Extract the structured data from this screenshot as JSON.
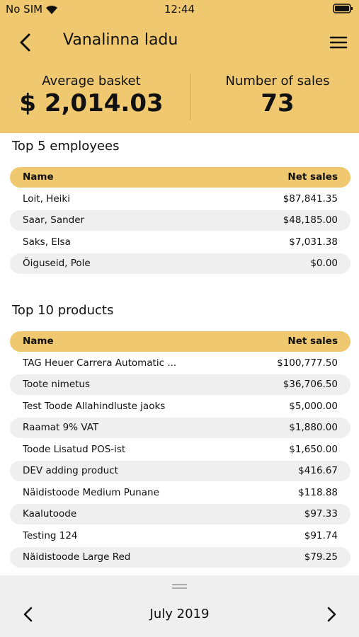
{
  "status_bar": {
    "carrier": "No SIM",
    "time": "12:44"
  },
  "header": {
    "title": "Vanalinna ladu"
  },
  "stats": [
    {
      "label": "Average basket",
      "value": "$ 2,014.03"
    },
    {
      "label": "Number of sales",
      "value": "73"
    }
  ],
  "employees": {
    "title": "Top 5 employees",
    "columns": [
      "Name",
      "Net sales"
    ],
    "rows": [
      [
        "Loit, Heiki",
        "$87,841.35"
      ],
      [
        "Saar, Sander",
        "$48,185.00"
      ],
      [
        "Saks, Elsa",
        "$7,031.38"
      ],
      [
        "Õiguseid, Pole",
        "$0.00"
      ]
    ]
  },
  "products": {
    "title": "Top 10 products",
    "columns": [
      "Name",
      "Net sales"
    ],
    "rows": [
      [
        "TAG Heuer Carrera Automatic ...",
        "$100,777.50"
      ],
      [
        "Toote nimetus",
        "$36,706.50"
      ],
      [
        "Test Toode Allahindluste jaoks",
        "$5,000.00"
      ],
      [
        "Raamat 9% VAT",
        "$1,880.00"
      ],
      [
        "Toode Lisatud POS-ist",
        "$1,650.00"
      ],
      [
        "DEV adding product",
        "$416.67"
      ],
      [
        "Näidistoode Medium Punane",
        "$118.88"
      ],
      [
        "Kaalutoode",
        "$97.33"
      ],
      [
        "Testing 124",
        "$91.74"
      ],
      [
        "Näidistoode Large Red",
        "$79.25"
      ]
    ]
  },
  "footer": {
    "period": "July 2019"
  }
}
